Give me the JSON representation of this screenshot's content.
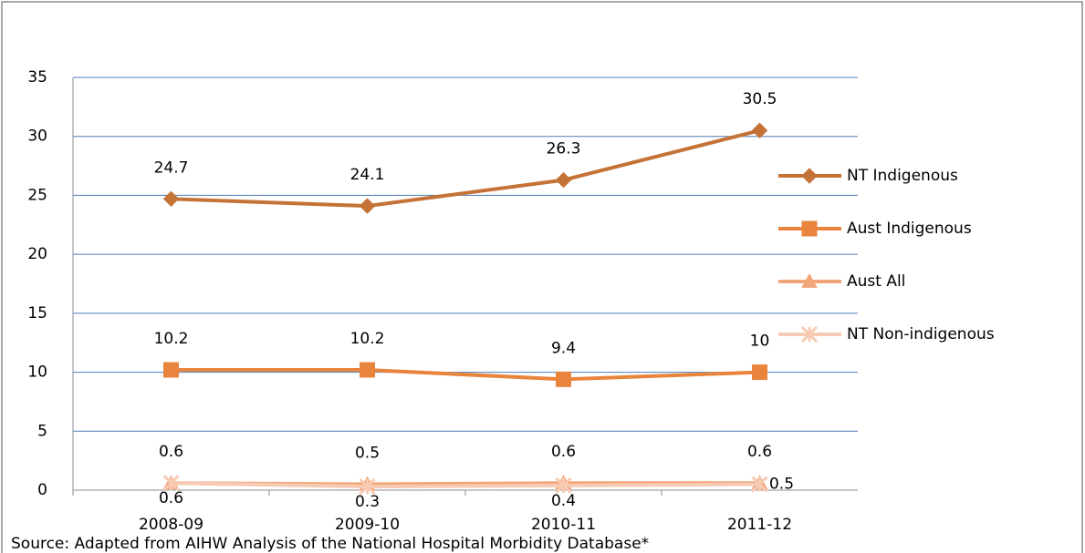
{
  "chart_data": {
    "type": "line",
    "categories": [
      "2008-09",
      "2009-10",
      "2010-11",
      "2011-12"
    ],
    "series": [
      {
        "name": "NT Indigenous",
        "color": "#c47236",
        "marker": "diamond",
        "label_position": "above",
        "values": [
          24.7,
          24.1,
          26.3,
          30.5
        ]
      },
      {
        "name": "Aust Indigenous",
        "color": "#e9843c",
        "marker": "square",
        "label_position": "above",
        "values": [
          10.2,
          10.2,
          9.4,
          10
        ]
      },
      {
        "name": "Aust All",
        "color": "#f3a57a",
        "marker": "triangle",
        "label_position": "above",
        "values": [
          0.6,
          0.5,
          0.6,
          0.6
        ]
      },
      {
        "name": "NT Non-indigenous",
        "color": "#f7cbb3",
        "marker": "x",
        "label_position": "below",
        "values": [
          0.6,
          0.3,
          0.4,
          0.5
        ]
      }
    ],
    "ylim": [
      0,
      35
    ],
    "yticks": [
      0,
      5,
      10,
      15,
      20,
      25,
      30,
      35
    ],
    "grid": true,
    "legend": "right",
    "source": "Source: Adapted from AIHW Analysis of the National Hospital Morbidity Database*"
  }
}
